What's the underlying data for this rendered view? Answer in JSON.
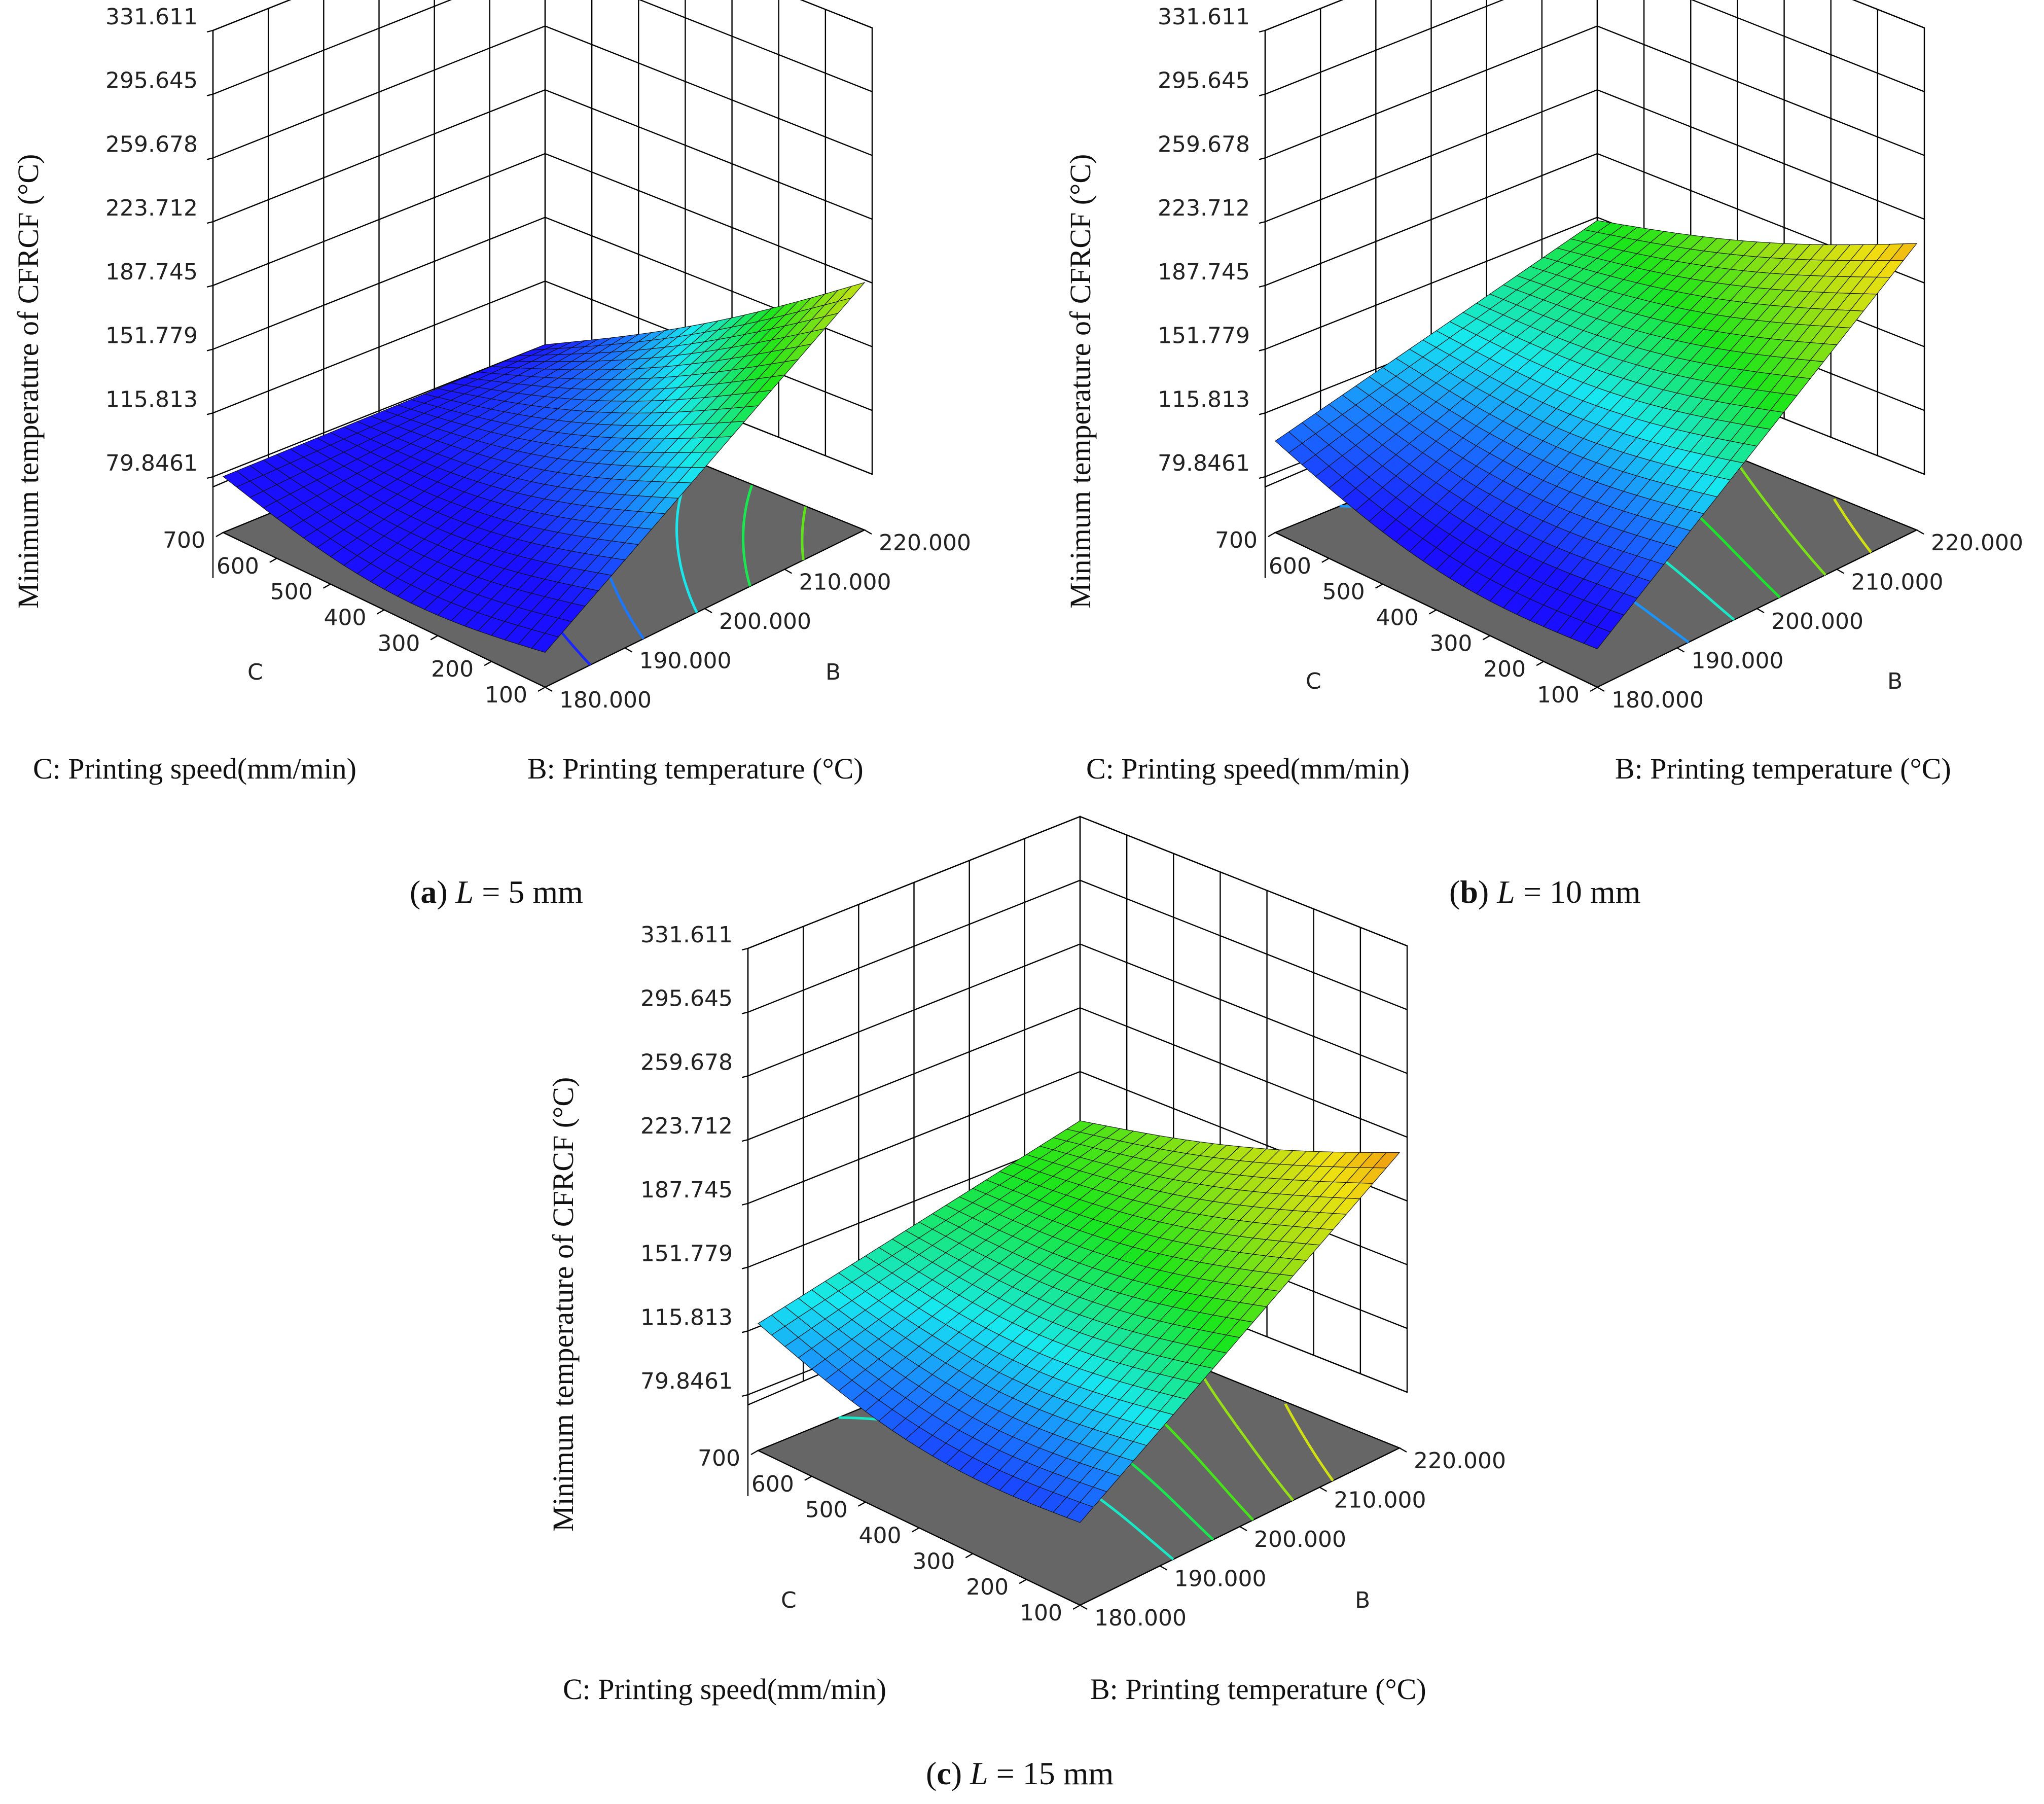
{
  "figure": {
    "panels": [
      {
        "letter": "a",
        "var": "L",
        "eq": " = ",
        "value": "5 mm",
        "zlabel": "Minimum temperature of CFRCF (°C)",
        "clabel": "C: Printing speed(mm/min)",
        "blabel": "B: Printing temperature (°C)",
        "c_axis_name": "C",
        "b_axis_name": "B"
      },
      {
        "letter": "b",
        "var": "L",
        "eq": " = ",
        "value": "10 mm",
        "zlabel": "Minimum temperature of CFRCF (°C)",
        "clabel": "C: Printing speed(mm/min)",
        "blabel": "B: Printing temperature (°C)",
        "c_axis_name": "C",
        "b_axis_name": "B"
      },
      {
        "letter": "c",
        "var": "L",
        "eq": " = ",
        "value": "15 mm",
        "zlabel": "Minimum temperature of CFRCF (°C)",
        "clabel": "C: Printing speed(mm/min)",
        "blabel": "B: Printing temperature (°C)",
        "c_axis_name": "C",
        "b_axis_name": "B"
      }
    ]
  },
  "colors": {
    "floor": "#666666",
    "grid": "#000000",
    "low": "#1a10ff",
    "mid": "#19e61a",
    "high": "#d94010"
  },
  "chart_data": [
    {
      "type": "surface",
      "title": "(a) L = 5 mm",
      "zlabel": "Minimum temperature of CFRCF (°C)",
      "xlabel": "B: Printing temperature (°C)",
      "ylabel": "C: Printing speed(mm/min)",
      "z_ticks": [
        "331.611",
        "295.645",
        "259.678",
        "223.712",
        "187.745",
        "151.779",
        "115.813",
        "79.8461"
      ],
      "b_ticks": [
        "180.000",
        "190.000",
        "200.000",
        "210.000",
        "220.000"
      ],
      "c_ticks": [
        "700",
        "600",
        "500",
        "400",
        "300",
        "200",
        "100"
      ],
      "zlim": [
        79.8461,
        331.611
      ],
      "blim": [
        180,
        220
      ],
      "clim": [
        100,
        700
      ],
      "corner_values": {
        "B180_C700": 80,
        "B220_C700": 80,
        "B180_C100": 68,
        "B220_C100": 188
      },
      "contour_levels": [
        85,
        105,
        125,
        145,
        165
      ]
    },
    {
      "type": "surface",
      "title": "(b) L = 10 mm",
      "zlabel": "Minimum temperature of CFRCF (°C)",
      "xlabel": "B: Printing temperature (°C)",
      "ylabel": "C: Printing speed(mm/min)",
      "z_ticks": [
        "331.611",
        "295.645",
        "259.678",
        "223.712",
        "187.745",
        "151.779",
        "115.813",
        "79.8461"
      ],
      "b_ticks": [
        "180.000",
        "190.000",
        "200.000",
        "210.000",
        "220.000"
      ],
      "c_ticks": [
        "700",
        "600",
        "500",
        "400",
        "300",
        "200",
        "100"
      ],
      "zlim": [
        79.8461,
        331.611
      ],
      "blim": [
        180,
        220
      ],
      "clim": [
        100,
        700
      ],
      "corner_values": {
        "B180_C700": 100,
        "B220_C700": 150,
        "B180_C100": 70,
        "B220_C100": 210
      },
      "contour_levels": [
        110,
        130,
        150,
        170,
        190
      ]
    },
    {
      "type": "surface",
      "title": "(c) L = 15 mm",
      "zlabel": "Minimum temperature of CFRCF (°C)",
      "xlabel": "B: Printing temperature (°C)",
      "ylabel": "C: Printing speed(mm/min)",
      "z_ticks": [
        "331.611",
        "295.645",
        "259.678",
        "223.712",
        "187.745",
        "151.779",
        "115.813",
        "79.8461"
      ],
      "b_ticks": [
        "180.000",
        "190.000",
        "200.000",
        "210.000",
        "220.000"
      ],
      "c_ticks": [
        "700",
        "600",
        "500",
        "400",
        "300",
        "200",
        "100"
      ],
      "zlim": [
        79.8461,
        331.611
      ],
      "blim": [
        180,
        220
      ],
      "clim": [
        100,
        700
      ],
      "corner_values": {
        "B180_C700": 120,
        "B220_C700": 160,
        "B180_C100": 95,
        "B220_C100": 215
      },
      "contour_levels": [
        130,
        145,
        160,
        175,
        190
      ]
    }
  ]
}
